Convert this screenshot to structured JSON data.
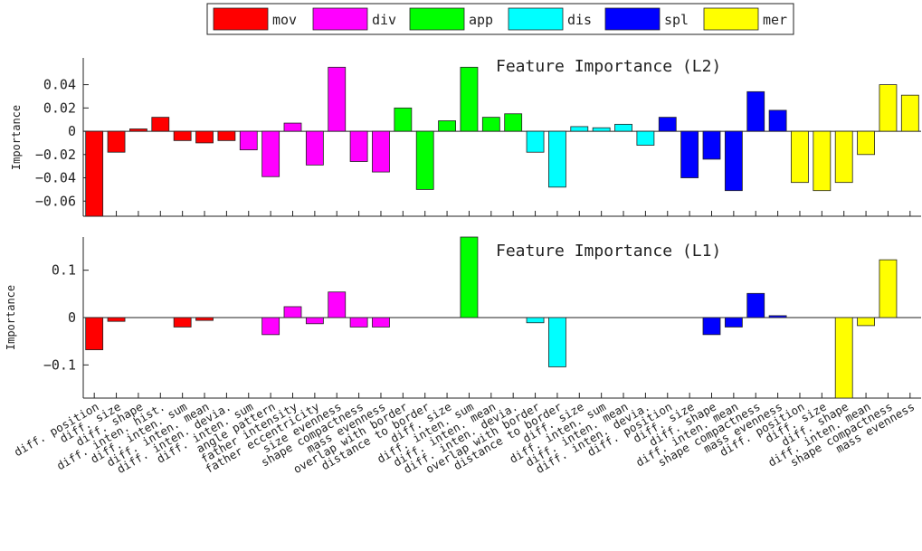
{
  "chart_data": {
    "type": "bar",
    "categories": [
      "diff. position",
      "diff. size",
      "diff. shape",
      "diff. inten. hist.",
      "diff. inten. sum",
      "diff. inten. mean",
      "diff. inten. devia.",
      "diff. inten. sum",
      "angle pattern",
      "father intensity",
      "father eccentricity",
      "size evenness",
      "shape compactness",
      "mass evenness",
      "overlap with border",
      "distance to border",
      "diff. size",
      "diff. inten. sum",
      "diff. inten. mean",
      "diff. inten. devia.",
      "overlap with border",
      "distance to border",
      "diff. size",
      "diff. inten. sum",
      "diff. inten. mean",
      "diff. inten. devia.",
      "diff. position",
      "diff. size",
      "diff. shape",
      "diff. inten. mean",
      "shape compactness",
      "mass evenness",
      "diff. position",
      "diff. size",
      "diff. shape",
      "diff. inten. mean",
      "shape compactness",
      "mass evenness"
    ],
    "groups": [
      {
        "name": "mov",
        "color": "#ff0000",
        "count": 7
      },
      {
        "name": "div",
        "color": "#ff00ff",
        "count": 7
      },
      {
        "name": "app",
        "color": "#00ff00",
        "count": 6
      },
      {
        "name": "dis",
        "color": "#00ffff",
        "count": 6
      },
      {
        "name": "spl",
        "color": "#0000ff",
        "count": 6
      },
      {
        "name": "mer",
        "color": "#ffff00",
        "count": 6
      }
    ],
    "panels": [
      {
        "title": "Feature Importance (L2)",
        "ylabel": "Importance",
        "ylim": [
          -0.073,
          0.063
        ],
        "yticks": [
          0.04,
          0.02,
          0,
          -0.02,
          -0.04,
          -0.06
        ],
        "ytick_labels": [
          "0.04",
          "0.02",
          "0",
          "−0.02",
          "−0.04",
          "−0.06"
        ],
        "values": [
          -0.075,
          -0.018,
          0.002,
          0.012,
          -0.008,
          -0.01,
          -0.008,
          -0.016,
          -0.039,
          0.007,
          -0.029,
          0.055,
          -0.026,
          -0.035,
          0.02,
          -0.05,
          0.009,
          0.055,
          0.012,
          0.015,
          -0.018,
          -0.048,
          0.004,
          0.003,
          0.006,
          -0.012,
          0.012,
          -0.04,
          -0.024,
          -0.051,
          0.034,
          0.018,
          -0.044,
          -0.051,
          -0.044,
          -0.02,
          0.04,
          0.031
        ]
      },
      {
        "title": "Feature Importance (L1)",
        "ylabel": "Importance",
        "ylim": [
          -0.17,
          0.17
        ],
        "yticks": [
          0.1,
          0,
          -0.1
        ],
        "ytick_labels": [
          "0.1",
          "0",
          "−0.1"
        ],
        "values": [
          -0.068,
          -0.008,
          0,
          0,
          -0.02,
          -0.006,
          0,
          0,
          -0.036,
          0.023,
          -0.013,
          0.054,
          -0.02,
          -0.02,
          0,
          0,
          0,
          0.17,
          0,
          0,
          -0.011,
          -0.104,
          0,
          0,
          0,
          0,
          0,
          0,
          -0.036,
          -0.02,
          0.051,
          0.004,
          0,
          0,
          -0.175,
          -0.017,
          0.122,
          0
        ]
      }
    ]
  }
}
